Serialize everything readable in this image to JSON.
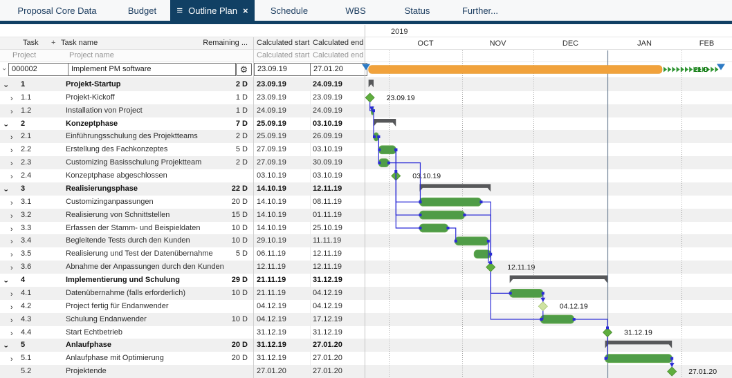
{
  "tabs": [
    {
      "label": "Proposal Core Data",
      "active": false
    },
    {
      "label": "Budget",
      "active": false
    },
    {
      "label": "Outline Plan",
      "active": true
    },
    {
      "label": "Schedule",
      "active": false
    },
    {
      "label": "WBS",
      "active": false
    },
    {
      "label": "Status",
      "active": false
    },
    {
      "label": "Further...",
      "active": false
    }
  ],
  "table": {
    "header": {
      "task": "Task",
      "plus": "+",
      "task_name": "Task name",
      "remaining": "Remaining ...",
      "calc_start": "Calculated start",
      "calc_end": "Calculated end"
    },
    "subheader": {
      "project": "Project",
      "project_name": "Project name",
      "calc_start": "Calculated start",
      "calc_end": "Calculated end"
    },
    "project_row": {
      "id": "000002",
      "name": "Implement PM software",
      "start": "23.09.19",
      "end": "27.01.20",
      "gear_icon": "⚙",
      "buffer_label": "21 D"
    }
  },
  "timeline": {
    "year": "2019",
    "months": [
      "OCT",
      "NOV",
      "DEC",
      "JAN",
      "FEB"
    ]
  },
  "rows": [
    {
      "id": "1",
      "name": "Projekt-Startup",
      "remaining": "2 D",
      "start": "23.09.19",
      "end": "24.09.19",
      "bold": true,
      "level": 1,
      "chevron": "expanded",
      "gantt": {
        "type": "summary"
      }
    },
    {
      "id": "1.1",
      "name": "Projekt-Kickoff",
      "remaining": "1 D",
      "start": "23.09.19",
      "end": "23.09.19",
      "bold": false,
      "level": 2,
      "chevron": "collapsed",
      "gantt": {
        "type": "milestone",
        "at": "start",
        "label": "23.09.19"
      }
    },
    {
      "id": "1.2",
      "name": "Installation von Project",
      "remaining": "1 D",
      "start": "24.09.19",
      "end": "24.09.19",
      "bold": false,
      "level": 2,
      "chevron": "collapsed",
      "gantt": {
        "type": "bar"
      }
    },
    {
      "id": "2",
      "name": "Konzeptphase",
      "remaining": "7 D",
      "start": "25.09.19",
      "end": "03.10.19",
      "bold": true,
      "level": 1,
      "chevron": "expanded",
      "gantt": {
        "type": "summary"
      }
    },
    {
      "id": "2.1",
      "name": "Einführungsschulung des Projektteams",
      "remaining": "2 D",
      "start": "25.09.19",
      "end": "26.09.19",
      "bold": false,
      "level": 2,
      "chevron": "collapsed",
      "gantt": {
        "type": "bar"
      }
    },
    {
      "id": "2.2",
      "name": "Erstellung des Fachkonzeptes",
      "remaining": "5 D",
      "start": "27.09.19",
      "end": "03.10.19",
      "bold": false,
      "level": 2,
      "chevron": "collapsed",
      "gantt": {
        "type": "bar"
      }
    },
    {
      "id": "2.3",
      "name": "Customizing Basisschulung Projektteam",
      "remaining": "2 D",
      "start": "27.09.19",
      "end": "30.09.19",
      "bold": false,
      "level": 2,
      "chevron": "collapsed",
      "gantt": {
        "type": "bar"
      }
    },
    {
      "id": "2.4",
      "name": "Konzeptphase abgeschlossen",
      "remaining": "",
      "start": "03.10.19",
      "end": "03.10.19",
      "bold": false,
      "level": 2,
      "chevron": "collapsed",
      "gantt": {
        "type": "milestone",
        "at": "end",
        "label": "03.10.19"
      }
    },
    {
      "id": "3",
      "name": "Realisierungsphase",
      "remaining": "22 D",
      "start": "14.10.19",
      "end": "12.11.19",
      "bold": true,
      "level": 1,
      "chevron": "expanded",
      "gantt": {
        "type": "summary"
      }
    },
    {
      "id": "3.1",
      "name": "Customizinganpassungen",
      "remaining": "20 D",
      "start": "14.10.19",
      "end": "08.11.19",
      "bold": false,
      "level": 2,
      "chevron": "collapsed",
      "gantt": {
        "type": "bar"
      }
    },
    {
      "id": "3.2",
      "name": "Realisierung von Schnittstellen",
      "remaining": "15 D",
      "start": "14.10.19",
      "end": "01.11.19",
      "bold": false,
      "level": 2,
      "chevron": "collapsed",
      "gantt": {
        "type": "bar"
      }
    },
    {
      "id": "3.3",
      "name": "Erfassen der Stamm- und Beispieldaten",
      "remaining": "10 D",
      "start": "14.10.19",
      "end": "25.10.19",
      "bold": false,
      "level": 2,
      "chevron": "collapsed",
      "gantt": {
        "type": "bar"
      }
    },
    {
      "id": "3.4",
      "name": "Begleitende Tests durch den Kunden",
      "remaining": "10 D",
      "start": "29.10.19",
      "end": "11.11.19",
      "bold": false,
      "level": 2,
      "chevron": "collapsed",
      "gantt": {
        "type": "bar"
      }
    },
    {
      "id": "3.5",
      "name": "Realisierung und Test der Datenübernahme",
      "remaining": "5 D",
      "start": "06.11.19",
      "end": "12.11.19",
      "bold": false,
      "level": 2,
      "chevron": "collapsed",
      "gantt": {
        "type": "bar"
      }
    },
    {
      "id": "3.6",
      "name": "Abnahme der Anpassungen durch den Kunden",
      "remaining": "",
      "start": "12.11.19",
      "end": "12.11.19",
      "bold": false,
      "level": 2,
      "chevron": "collapsed",
      "gantt": {
        "type": "milestone",
        "at": "end",
        "label": "12.11.19"
      }
    },
    {
      "id": "4",
      "name": "Implementierung und Schulung",
      "remaining": "29 D",
      "start": "21.11.19",
      "end": "31.12.19",
      "bold": true,
      "level": 1,
      "chevron": "expanded",
      "gantt": {
        "type": "summary"
      }
    },
    {
      "id": "4.1",
      "name": "Datenübernahme (falls erforderlich)",
      "remaining": "10 D",
      "start": "21.11.19",
      "end": "04.12.19",
      "bold": false,
      "level": 2,
      "chevron": "collapsed",
      "gantt": {
        "type": "bar"
      }
    },
    {
      "id": "4.2",
      "name": "Project fertig für Endanwender",
      "remaining": "",
      "start": "04.12.19",
      "end": "04.12.19",
      "bold": false,
      "level": 2,
      "chevron": "collapsed",
      "gantt": {
        "type": "milestone",
        "at": "end",
        "label": "04.12.19",
        "color": "light"
      }
    },
    {
      "id": "4.3",
      "name": "Schulung Endanwender",
      "remaining": "10 D",
      "start": "04.12.19",
      "end": "17.12.19",
      "bold": false,
      "level": 2,
      "chevron": "collapsed",
      "gantt": {
        "type": "bar"
      }
    },
    {
      "id": "4.4",
      "name": "Start Echtbetrieb",
      "remaining": "",
      "start": "31.12.19",
      "end": "31.12.19",
      "bold": false,
      "level": 2,
      "chevron": "collapsed",
      "gantt": {
        "type": "milestone",
        "at": "end",
        "label": "31.12.19"
      }
    },
    {
      "id": "5",
      "name": "Anlaufphase",
      "remaining": "20 D",
      "start": "31.12.19",
      "end": "27.01.20",
      "bold": true,
      "level": 1,
      "chevron": "expanded",
      "gantt": {
        "type": "summary"
      }
    },
    {
      "id": "5.1",
      "name": "Anlaufphase mit Optimierung",
      "remaining": "20 D",
      "start": "31.12.19",
      "end": "27.01.20",
      "bold": false,
      "level": 2,
      "chevron": "collapsed",
      "gantt": {
        "type": "bar"
      }
    },
    {
      "id": "5.2",
      "name": "Projektende",
      "remaining": "",
      "start": "27.01.20",
      "end": "27.01.20",
      "bold": false,
      "level": 2,
      "chevron": "none",
      "gantt": {
        "type": "milestone",
        "at": "end",
        "label": "27.01.20"
      }
    }
  ],
  "links": [
    {
      "from": "1.1",
      "to": "1.2",
      "route": "vh",
      "end": "arrow"
    },
    {
      "from": "1.2",
      "to": "2.1",
      "route": "vh",
      "end": "dot"
    },
    {
      "from": "2.1",
      "to": "2.2",
      "route": "vh",
      "end": "dot"
    },
    {
      "from": "2.1",
      "to": "2.3",
      "route": "vh",
      "end": "dot"
    },
    {
      "from": "2.2",
      "to": "2.4",
      "route": "vh",
      "end": "dot"
    },
    {
      "from": "2.2",
      "to": "3.1",
      "route": "vh",
      "end": "dot"
    },
    {
      "from": "2.2",
      "to": "3.2",
      "route": "vh",
      "end": "dot"
    },
    {
      "from": "2.2",
      "to": "3.3",
      "route": "vh",
      "end": "dot"
    },
    {
      "from": "2.3",
      "to": "3.1",
      "route": "hv",
      "end": "dot"
    },
    {
      "from": "3.3",
      "to": "3.4",
      "route": "hv",
      "end": "dot"
    },
    {
      "from": "3.1",
      "to": "3.6",
      "route": "hv",
      "end": "none"
    },
    {
      "from": "3.2",
      "to": "3.6",
      "route": "hv",
      "end": "none"
    },
    {
      "from": "3.4",
      "to": "3.6",
      "route": "vh",
      "end": "none"
    },
    {
      "from": "3.5",
      "to": "3.6",
      "route": "vh",
      "end": "dot"
    },
    {
      "from": "3.6",
      "to": "4.1",
      "route": "vh",
      "end": "dot"
    },
    {
      "from": "3.6",
      "to": "4.3",
      "route": "vh",
      "end": "dot"
    },
    {
      "from": "4.1",
      "to": "4.2",
      "route": "vh",
      "end": "arrow"
    },
    {
      "from": "4.2",
      "to": "4.3",
      "route": "vh",
      "end": "dot"
    },
    {
      "from": "4.3",
      "to": "4.4",
      "route": "hv",
      "end": "dot"
    },
    {
      "from": "4.4",
      "to": "5.1",
      "route": "vh",
      "end": "dot"
    },
    {
      "from": "5.1",
      "to": "5.2",
      "route": "vh",
      "end": "arrow"
    }
  ],
  "colors": {
    "accent_navy": "#114064",
    "tab_text": "#1c3d60",
    "stripe": "#f0f0f0",
    "bar_green": "#4f9c47",
    "bar_green_edge": "#6cae55",
    "milestone_green": "#5fae3e",
    "milestone_light": "#cfe2a2",
    "summary_gray": "#57585a",
    "project_orange": "#f1a23c",
    "link_blue": "#2b2bd6",
    "marker_blue": "#2e7bc4",
    "buffer_green": "#2f9432",
    "gridline": "#a5a5a5",
    "year_line": "#6a7d92"
  }
}
